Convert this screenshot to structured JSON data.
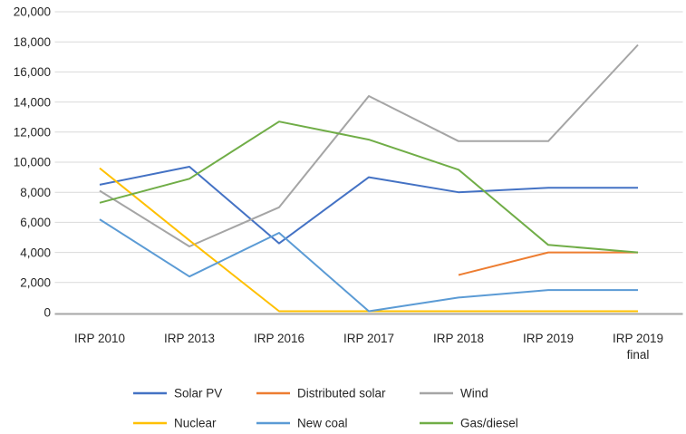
{
  "chart_data": {
    "type": "line",
    "title": "",
    "categories": [
      "IRP 2010",
      "IRP 2013",
      "IRP 2016",
      "IRP 2017",
      "IRP 2018",
      "IRP 2019",
      "IRP 2019 final"
    ],
    "category_display": [
      [
        "IRP 2010"
      ],
      [
        "IRP 2013"
      ],
      [
        "IRP 2016"
      ],
      [
        "IRP 2017"
      ],
      [
        "IRP 2018"
      ],
      [
        "IRP 2019"
      ],
      [
        "IRP 2019",
        "final"
      ]
    ],
    "series": [
      {
        "name": "Solar PV",
        "color": "#4472C4",
        "values": [
          8500,
          9700,
          4600,
          9000,
          8000,
          8300,
          8300
        ]
      },
      {
        "name": "Distributed solar",
        "color": "#ED7D31",
        "values": [
          null,
          null,
          null,
          null,
          2500,
          4000,
          4000
        ]
      },
      {
        "name": "Wind",
        "color": "#A5A5A5",
        "values": [
          8100,
          4400,
          7000,
          14400,
          11400,
          11400,
          17800
        ]
      },
      {
        "name": "Nuclear",
        "color": "#FFC000",
        "values": [
          9600,
          4800,
          0,
          0,
          0,
          0,
          0
        ]
      },
      {
        "name": "New coal",
        "color": "#5B9BD5",
        "values": [
          6200,
          2400,
          5300,
          0,
          1000,
          1500,
          1500
        ]
      },
      {
        "name": "Gas/diesel",
        "color": "#70AD47",
        "values": [
          7300,
          8900,
          12700,
          11500,
          9500,
          4500,
          4000
        ]
      }
    ],
    "y_axis": {
      "min": 0,
      "max": 20000,
      "step": 2000,
      "tick_labels": [
        "0",
        "2,000",
        "4,000",
        "6,000",
        "8,000",
        "10,000",
        "12,000",
        "14,000",
        "16,000",
        "18,000",
        "20,000"
      ]
    },
    "x_axis": {
      "label": ""
    },
    "grid": true,
    "legend": {
      "position": "bottom",
      "rows": [
        [
          "Solar PV",
          "Distributed solar",
          "Wind"
        ],
        [
          "Nuclear",
          "New coal",
          "Gas/diesel"
        ]
      ]
    },
    "colors": {
      "gridline": "#D9D9D9",
      "axis_line": "#A6A6A6",
      "text": "#262626",
      "background": "#FFFFFF"
    }
  }
}
